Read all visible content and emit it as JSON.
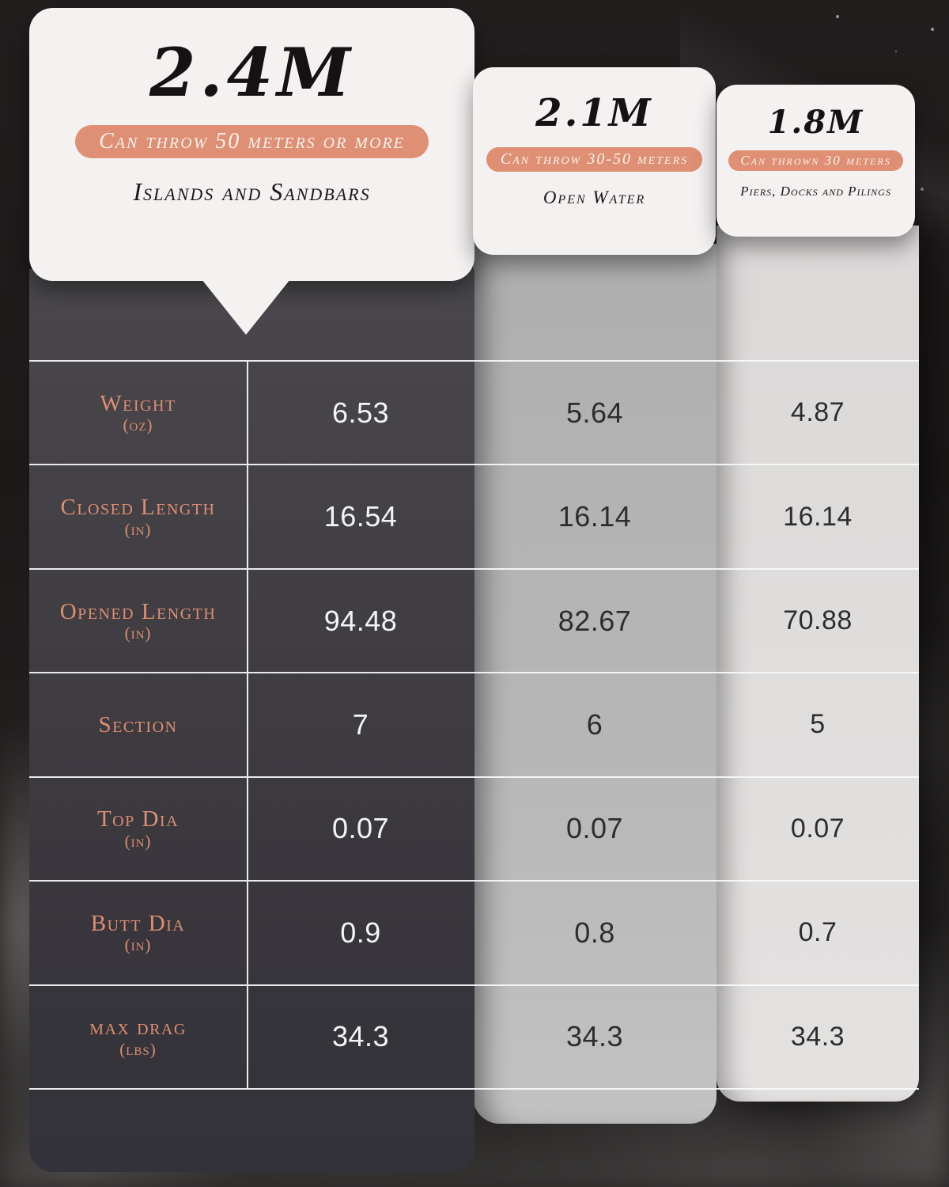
{
  "cards": [
    {
      "size": "2.4M",
      "badge": "Can throw 50 meters or more",
      "use": "Islands and Sandbars"
    },
    {
      "size": "2.1M",
      "badge": "Can throw 30-50 meters",
      "use": "Open Water"
    },
    {
      "size": "1.8M",
      "badge": "Can thrown 30 meters",
      "use": "Piers, Docks and Pilings"
    }
  ],
  "specs": [
    {
      "label": "Weight",
      "unit": "(oz)",
      "v": [
        "6.53",
        "5.64",
        "4.87"
      ]
    },
    {
      "label": "Closed Length",
      "unit": "(in)",
      "v": [
        "16.54",
        "16.14",
        "16.14"
      ]
    },
    {
      "label": "Opened Length",
      "unit": "(in)",
      "v": [
        "94.48",
        "82.67",
        "70.88"
      ]
    },
    {
      "label": "Section",
      "unit": "",
      "v": [
        "7",
        "6",
        "5"
      ]
    },
    {
      "label": "Top Dia",
      "unit": "(in)",
      "v": [
        "0.07",
        "0.07",
        "0.07"
      ]
    },
    {
      "label": "Butt Dia",
      "unit": "(in)",
      "v": [
        "0.9",
        "0.8",
        "0.7"
      ]
    },
    {
      "label": "max drag",
      "unit": "(lbs)",
      "v": [
        "34.3",
        "34.3",
        "34.3"
      ]
    }
  ],
  "colors": {
    "accent": "#DF8F74",
    "card_bg": "#F4F2F1",
    "dark_panel": "#3E3C40",
    "mid_panel": "#B7B6B7",
    "light_panel": "#E0DEDD",
    "value_on_dark": "#F5F4F4",
    "value_on_light": "#2E2D2D",
    "background": "#1B1918"
  },
  "chart_data": {
    "type": "table",
    "title": "",
    "columns": [
      {
        "name": "2.4M",
        "throw_range": "Can throw 50 meters or more",
        "use_case": "Islands and Sandbars"
      },
      {
        "name": "2.1M",
        "throw_range": "Can throw 30-50 meters",
        "use_case": "Open Water"
      },
      {
        "name": "1.8M",
        "throw_range": "Can thrown 30 meters",
        "use_case": "Piers, Docks and Pilings"
      }
    ],
    "row_labels": [
      "Weight (oz)",
      "Closed Length (in)",
      "Opened Length (in)",
      "Section",
      "Top Dia (in)",
      "Butt Dia (in)",
      "max drag (lbs)"
    ],
    "values": [
      [
        6.53,
        5.64,
        4.87
      ],
      [
        16.54,
        16.14,
        16.14
      ],
      [
        94.48,
        82.67,
        70.88
      ],
      [
        7,
        6,
        5
      ],
      [
        0.07,
        0.07,
        0.07
      ],
      [
        0.9,
        0.8,
        0.7
      ],
      [
        34.3,
        34.3,
        34.3
      ]
    ]
  }
}
